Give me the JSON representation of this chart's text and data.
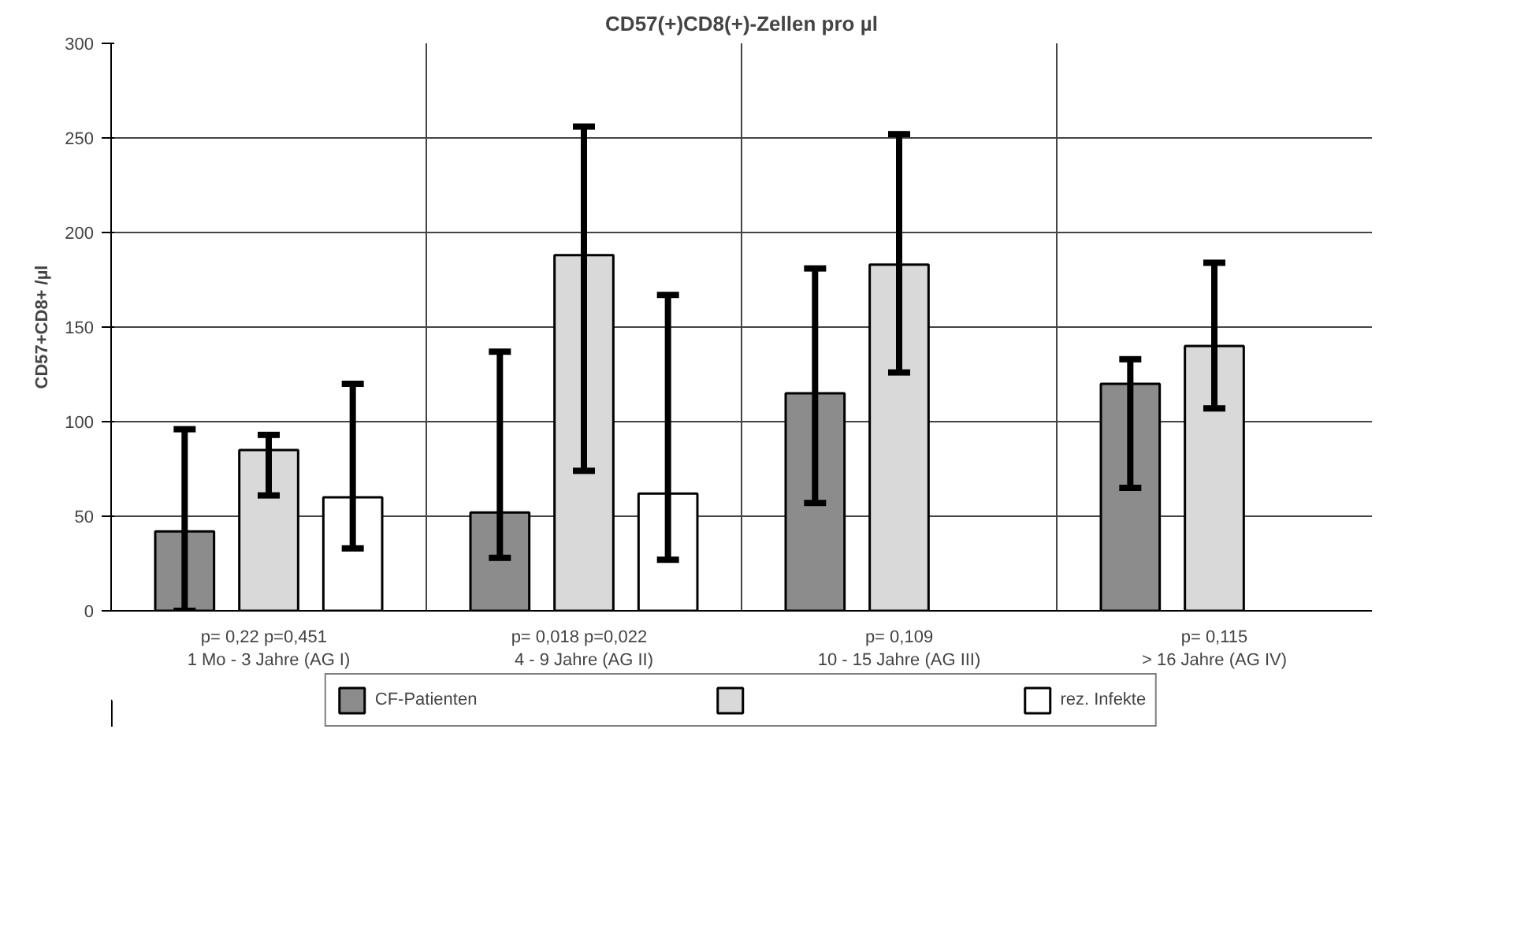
{
  "chart_data": {
    "type": "bar",
    "title": "CD57(+)CD8(+)-Zellen pro µl",
    "ylabel": "CD57+CD8+ /µl",
    "categories": [
      "p= 0,22   p=0,451\n1 Mo - 3 Jahre (AG I)",
      "p= 0,018   p=0,022\n4 - 9 Jahre (AG II)",
      "p= 0,109\n10 - 15 Jahre (AG III)",
      "p= 0,115\n> 16 Jahre (AG IV)"
    ],
    "series": [
      {
        "name": "CF-Patienten",
        "color": "#8c8c8c",
        "values": [
          42,
          52,
          115,
          120
        ],
        "errors": [
          [
            0,
            96
          ],
          [
            28,
            137
          ],
          [
            57,
            181
          ],
          [
            65,
            133
          ]
        ]
      },
      {
        "color": "#d9d9d9",
        "values": [
          85,
          188,
          183,
          140
        ],
        "errors": [
          [
            61,
            93
          ],
          [
            74,
            256
          ],
          [
            126,
            252
          ],
          [
            107,
            184
          ]
        ]
      },
      {
        "name": "rez. Infekte",
        "color": "#ffffff",
        "values": [
          60,
          62,
          null,
          null
        ],
        "errors": [
          [
            33,
            120
          ],
          [
            27,
            167
          ],
          null,
          null
        ]
      }
    ],
    "ylim": [
      0,
      300
    ],
    "yticks": [
      0,
      50,
      100,
      150,
      200,
      250,
      300
    ],
    "grid": true,
    "legend": "bottom"
  }
}
